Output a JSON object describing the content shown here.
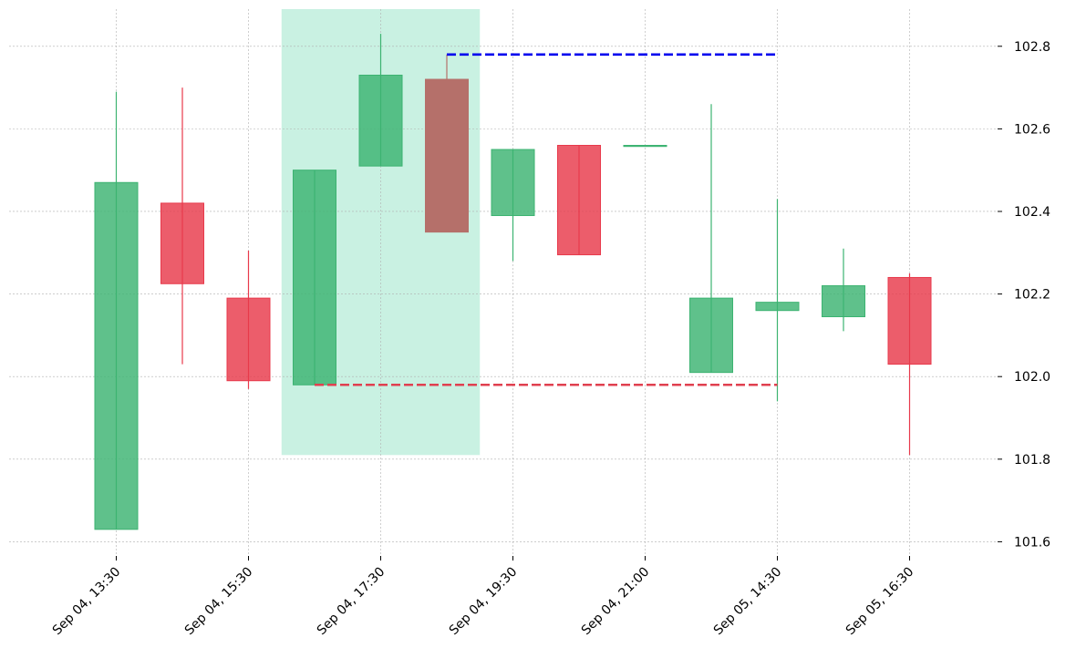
{
  "chart_data": {
    "type": "candlestick",
    "title": "",
    "xlabel": "",
    "ylabel": "",
    "ylim": [
      101.57,
      102.89
    ],
    "y_ticks": [
      101.6,
      101.8,
      102.0,
      102.2,
      102.4,
      102.6,
      102.8
    ],
    "y_tick_labels": [
      "101.6",
      "101.8",
      "102.0",
      "102.2",
      "102.4",
      "102.6",
      "102.8"
    ],
    "x_tick_labels": [
      {
        "index": 0,
        "label": "Sep 04, 13:30"
      },
      {
        "index": 2,
        "label": "Sep 04, 15:30"
      },
      {
        "index": 4,
        "label": "Sep 04, 17:30"
      },
      {
        "index": 6,
        "label": "Sep 04, 19:30"
      },
      {
        "index": 8,
        "label": "Sep 04, 21:00"
      },
      {
        "index": 10,
        "label": "Sep 05, 14:30"
      },
      {
        "index": 12,
        "label": "Sep 05, 16:30"
      }
    ],
    "grid": true,
    "candles": [
      {
        "open": 101.63,
        "high": 102.69,
        "low": 101.63,
        "close": 102.47
      },
      {
        "open": 102.42,
        "high": 102.7,
        "low": 102.03,
        "close": 102.225
      },
      {
        "open": 102.19,
        "high": 102.305,
        "low": 101.97,
        "close": 101.99
      },
      {
        "open": 101.98,
        "high": 102.5,
        "low": 101.98,
        "close": 102.5
      },
      {
        "open": 102.51,
        "high": 102.83,
        "low": 102.51,
        "close": 102.73
      },
      {
        "open": 102.72,
        "high": 102.78,
        "low": 102.35,
        "close": 102.35,
        "highlighted": true
      },
      {
        "open": 102.39,
        "high": 102.55,
        "low": 102.28,
        "close": 102.55
      },
      {
        "open": 102.56,
        "high": 102.56,
        "low": 102.295,
        "close": 102.295
      },
      {
        "open": 102.56,
        "high": 102.56,
        "low": 102.56,
        "close": 102.56
      },
      {
        "open": 102.01,
        "high": 102.66,
        "low": 102.01,
        "close": 102.19
      },
      {
        "open": 102.16,
        "high": 102.43,
        "low": 101.94,
        "close": 102.18
      },
      {
        "open": 102.145,
        "high": 102.31,
        "low": 102.11,
        "close": 102.22
      },
      {
        "open": 102.24,
        "high": 102.25,
        "low": 101.81,
        "close": 102.03
      }
    ],
    "highlight_region": {
      "start_index": 2.5,
      "end_index": 5.5,
      "low": 101.81,
      "high": 102.89
    },
    "levels": [
      {
        "name": "resistance",
        "value": 102.78,
        "start_index": 5,
        "end_index": 10,
        "color": "#0000ee"
      },
      {
        "name": "support",
        "value": 101.98,
        "start_index": 3,
        "end_index": 10,
        "color": "#e04050"
      }
    ],
    "colors": {
      "up": "#3cb371",
      "down": "#e8394b",
      "highlight_candle": "#b5706a",
      "highlight_region": "#c6f0e0"
    }
  }
}
